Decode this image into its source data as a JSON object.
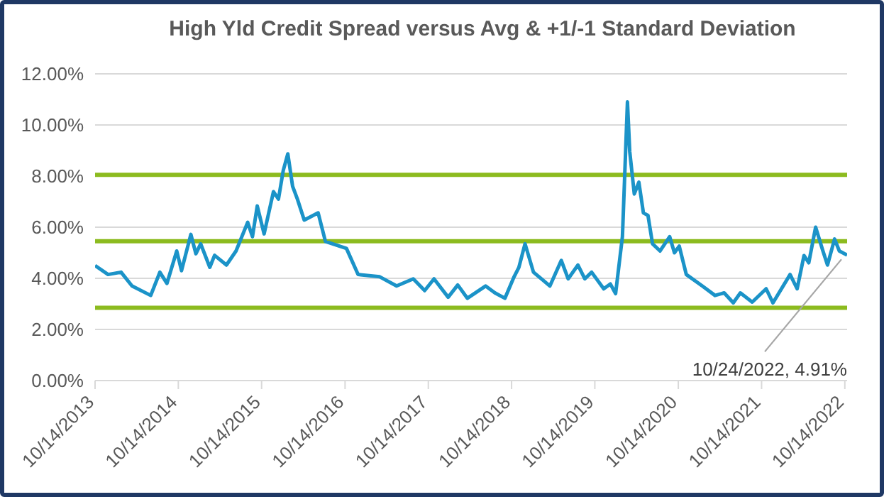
{
  "chart_data": {
    "type": "line",
    "title": "High Yld Credit Spread versus Avg & +1/-1 Standard Deviation",
    "x": [
      "2013-10-14",
      "2013-12-10",
      "2014-02-05",
      "2014-03-25",
      "2014-06-15",
      "2014-07-25",
      "2014-08-25",
      "2014-10-07",
      "2014-10-28",
      "2014-12-08",
      "2014-12-30",
      "2015-01-20",
      "2015-03-01",
      "2015-03-22",
      "2015-05-13",
      "2015-06-24",
      "2015-08-14",
      "2015-09-04",
      "2015-09-25",
      "2015-10-25",
      "2015-12-05",
      "2015-12-27",
      "2016-01-17",
      "2016-02-06",
      "2016-02-27",
      "2016-03-19",
      "2016-04-18",
      "2016-06-18",
      "2016-07-20",
      "2016-10-20",
      "2016-12-10",
      "2017-03-15",
      "2017-05-28",
      "2017-08-09",
      "2017-09-28",
      "2017-11-08",
      "2018-01-09",
      "2018-02-20",
      "2018-04-03",
      "2018-06-22",
      "2018-08-02",
      "2018-09-15",
      "2018-10-25",
      "2018-11-15",
      "2018-12-12",
      "2019-01-18",
      "2019-03-31",
      "2019-05-20",
      "2019-06-19",
      "2019-08-01",
      "2019-08-31",
      "2019-09-30",
      "2019-11-22",
      "2019-12-21",
      "2020-01-13",
      "2020-02-12",
      "2020-03-05",
      "2020-03-15",
      "2020-04-04",
      "2020-04-24",
      "2020-05-14",
      "2020-06-03",
      "2020-06-23",
      "2020-07-26",
      "2020-09-06",
      "2020-09-27",
      "2020-10-18",
      "2020-11-18",
      "2021-01-27",
      "2021-03-24",
      "2021-05-03",
      "2021-06-12",
      "2021-07-13",
      "2021-09-03",
      "2021-11-03",
      "2021-12-03",
      "2022-02-16",
      "2022-03-19",
      "2022-04-18",
      "2022-05-09",
      "2022-06-08",
      "2022-07-10",
      "2022-07-30",
      "2022-08-30",
      "2022-09-20",
      "2022-10-24"
    ],
    "series": [
      {
        "color": "#1b93c8",
        "values": [
          4.5,
          4.15,
          4.24,
          3.7,
          3.33,
          4.24,
          3.8,
          5.07,
          4.3,
          5.72,
          4.96,
          5.35,
          4.43,
          4.9,
          4.52,
          5.07,
          6.19,
          5.63,
          6.83,
          5.74,
          7.39,
          7.1,
          8.22,
          8.87,
          7.6,
          7.1,
          6.28,
          6.56,
          5.44,
          5.17,
          4.15,
          4.06,
          3.7,
          3.98,
          3.52,
          3.98,
          3.26,
          3.74,
          3.22,
          3.7,
          3.43,
          3.22,
          4.06,
          4.43,
          5.35,
          4.24,
          3.7,
          4.7,
          3.98,
          4.52,
          3.98,
          4.24,
          3.59,
          3.78,
          3.4,
          5.63,
          10.9,
          8.96,
          7.3,
          7.76,
          6.56,
          6.46,
          5.35,
          5.07,
          5.63,
          5.0,
          5.26,
          4.15,
          3.7,
          3.33,
          3.43,
          3.04,
          3.43,
          3.07,
          3.59,
          3.04,
          4.15,
          3.59,
          4.89,
          4.61,
          6.0,
          5.07,
          4.52,
          5.54,
          5.07,
          4.91
        ]
      }
    ],
    "xlim": [
      "2013-10-14",
      "2022-10-24"
    ],
    "xticks": [
      {
        "value": "2013-10-14",
        "label": "10/14/2013"
      },
      {
        "value": "2014-10-14",
        "label": "10/14/2014"
      },
      {
        "value": "2015-10-14",
        "label": "10/14/2015"
      },
      {
        "value": "2016-10-14",
        "label": "10/14/2016"
      },
      {
        "value": "2017-10-14",
        "label": "10/14/2017"
      },
      {
        "value": "2018-10-14",
        "label": "10/14/2018"
      },
      {
        "value": "2019-10-14",
        "label": "10/14/2019"
      },
      {
        "value": "2020-10-14",
        "label": "10/14/2020"
      },
      {
        "value": "2021-10-14",
        "label": "10/14/2021"
      },
      {
        "value": "2022-10-14",
        "label": "10/14/2022"
      }
    ],
    "ylim": [
      0,
      12
    ],
    "yticks": [
      {
        "value": 0,
        "label": "0.00%"
      },
      {
        "value": 2,
        "label": "2.00%"
      },
      {
        "value": 4,
        "label": "4.00%"
      },
      {
        "value": 6,
        "label": "6.00%"
      },
      {
        "value": 8,
        "label": "8.00%"
      },
      {
        "value": 10,
        "label": "10.00%"
      },
      {
        "value": 12,
        "label": "12.00%"
      }
    ],
    "ref_lines": [
      {
        "axis": "y",
        "value": 8.05,
        "color": "#8cbb1f"
      },
      {
        "axis": "y",
        "value": 5.45,
        "color": "#8cbb1f"
      },
      {
        "axis": "y",
        "value": 2.85,
        "color": "#8cbb1f"
      }
    ],
    "annotations": [
      {
        "text": "10/24/2022, 4.91%",
        "x": "2022-10-24",
        "y": 4.91
      }
    ],
    "grid": "y",
    "legend": false,
    "marker": "none",
    "line_style": "solid"
  }
}
